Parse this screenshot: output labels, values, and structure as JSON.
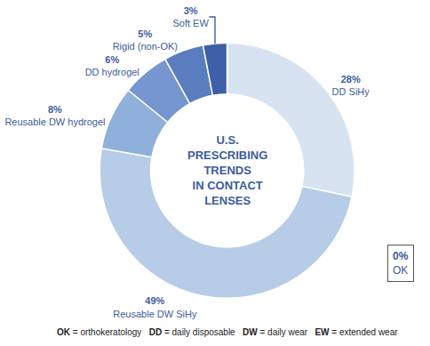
{
  "chart_data": {
    "type": "pie",
    "title": "U.S. PRESCRIBING TRENDS IN CONTACT LENSES",
    "categories": [
      "DD SiHy",
      "Reusable DW SiHy",
      "Reusable DW hydrogel",
      "DD hydrogel",
      "Rigid (non-OK)",
      "Soft EW",
      "OK"
    ],
    "values": [
      28,
      49,
      8,
      6,
      5,
      3,
      0
    ],
    "value_labels": [
      "28%",
      "49%",
      "8%",
      "6%",
      "5%",
      "3%",
      "0%"
    ],
    "colors": [
      "#d7e3f1",
      "#b6cce7",
      "#8fb0da",
      "#7596cf",
      "#5a7dc0",
      "#3f5fa8",
      "#5a7dc0"
    ],
    "data_labels": true,
    "annotations": [
      "OK = orthokeratology",
      "DD = daily disposable",
      "DW = daily wear",
      "EW = extended wear"
    ]
  }
}
